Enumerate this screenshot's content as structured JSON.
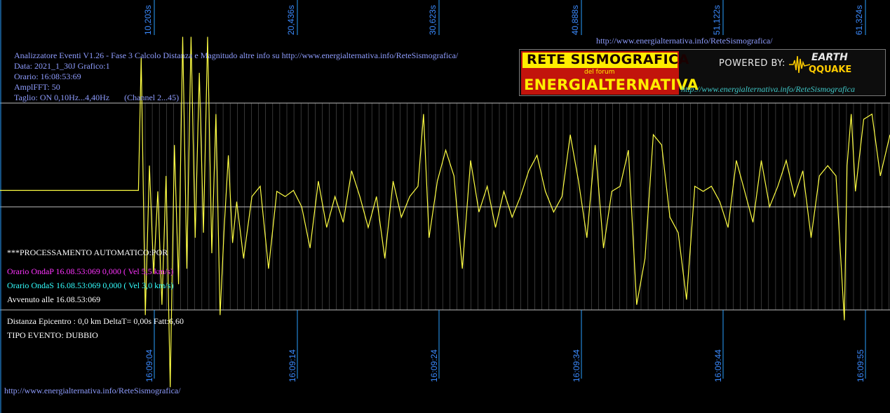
{
  "header": {
    "url_top": "http://www.energialternativa.info/ReteSismografica/",
    "url_bottom": "http://www.energialternativa.info/ReteSismografica/"
  },
  "info": {
    "line1": "Analizzatore Eventi V1.26 - Fase 3 Calcolo Distanza e Magnitudo altre info su http://www.energialternativa.info/ReteSismografica/",
    "line2": "Data: 2021_1_30J Grafico:1",
    "line3": "Orario: 16:08:53:69",
    "line4": "AmplFFT: 50",
    "line5": "Taglio: ON 0,10Hz...4,40Hz       (Channel 2...45)"
  },
  "analysis": {
    "proc": "***PROCESSAMENTO AUTOMATICO:POR",
    "onda_p": "Orario OndaP 16.08.53:069  0,000 ( Vel 5,5 km/s)",
    "onda_s": "Orario OndaS 16.08.53:069  0,000 ( Vel 3,0 km/s)",
    "avvenuto": "Avvenuto alle 16.08.53:069",
    "distanza": "Distanza Epicentro : 0,0 km DeltaT= 0,00s  Fatt:6,60",
    "tipo": "TIPO EVENTO: DUBBIO"
  },
  "logo": {
    "line1": "RETE SISMOGRAFICA",
    "line2": "del forum",
    "line3": "ENERGIALTERNATIVA",
    "powered": "POWERED BY:",
    "brand1": "EARTH",
    "brand2": "QQUAKE",
    "url": "http://www.energialternativa.info/ReteSismografica"
  },
  "colors": {
    "background": "#000000",
    "trace": "#ffff44",
    "grid": "#bbbbbb",
    "tick_label": "#3b8bff",
    "info_text": "#8f9dff"
  },
  "chart_data": {
    "type": "line",
    "x_top_ticks": [
      "10,203s",
      "20,436s",
      "30,623s",
      "40,888s",
      "51,122s",
      "61,324s"
    ],
    "x_bottom_ticks": [
      "16:09:04",
      "16:09:14",
      "16:09:24",
      "16:09:34",
      "16:09:44",
      "16:09:55"
    ],
    "series": [
      {
        "x": [
          0,
          2,
          4,
          6,
          8,
          10,
          10.2,
          10.5,
          10.8,
          11.1,
          11.4,
          11.7,
          12.0,
          12.3,
          12.6,
          12.9,
          13.2,
          13.5,
          13.8,
          14.1,
          14.4,
          14.7,
          15.0,
          15.3,
          15.6,
          15.9,
          16.2,
          16.5,
          16.8,
          17.1,
          17.6,
          18.2,
          18.8,
          19.4,
          20.0,
          20.6,
          21.2,
          21.8,
          22.4,
          23.0,
          23.6,
          24.2,
          24.8,
          25.4,
          26.0,
          26.6,
          27.2,
          27.8,
          28.4,
          29.0,
          29.6,
          30.2,
          30.6,
          31.0,
          31.6,
          32.2,
          32.8,
          33.4,
          34.0,
          34.6,
          35.2,
          35.8,
          36.4,
          37.0,
          37.6,
          38.2,
          38.8,
          39.4,
          40.0,
          40.6,
          41.2,
          41.8,
          42.4,
          43.0,
          43.6,
          44.2,
          44.8,
          45.4,
          46.0,
          46.6,
          47.2,
          47.8,
          48.4,
          49.0,
          49.6,
          50.2,
          50.8,
          51.4,
          52.0,
          52.6,
          53.2,
          53.8,
          54.4,
          55.0,
          55.6,
          56.2,
          56.8,
          57.4,
          58.0,
          58.6,
          59.2,
          59.8,
          60.4,
          61.0,
          61.2,
          61.5,
          61.8,
          62.4,
          63.0,
          63.6,
          64.3
        ],
        "y": [
          0.16,
          0.16,
          0.16,
          0.16,
          0.16,
          0.16,
          1.45,
          -1.05,
          0.4,
          -0.65,
          0.15,
          -0.95,
          0.3,
          -1.75,
          0.6,
          -0.75,
          1.65,
          -0.6,
          1.65,
          -0.3,
          1.3,
          -0.25,
          1.65,
          -0.45,
          0.9,
          -1.05,
          -0.2,
          0.5,
          -0.35,
          0.05,
          -0.5,
          0.1,
          0.2,
          -0.6,
          0.15,
          0.1,
          0.16,
          0.0,
          -0.4,
          0.25,
          -0.2,
          0.1,
          -0.15,
          0.35,
          0.1,
          -0.2,
          0.1,
          -0.5,
          0.25,
          -0.1,
          0.1,
          0.2,
          0.9,
          -0.3,
          0.25,
          0.55,
          0.3,
          -0.6,
          0.45,
          -0.05,
          0.2,
          -0.2,
          0.15,
          -0.1,
          0.1,
          0.35,
          0.5,
          0.15,
          -0.05,
          0.1,
          0.7,
          0.25,
          -0.3,
          0.6,
          -0.4,
          0.15,
          0.2,
          0.55,
          -0.95,
          -0.5,
          0.7,
          0.6,
          -0.1,
          -0.25,
          -0.9,
          0.2,
          0.15,
          0.2,
          0.05,
          -0.2,
          0.45,
          0.15,
          -0.15,
          0.45,
          0.0,
          0.2,
          0.45,
          0.1,
          0.35,
          -0.3,
          0.3,
          0.4,
          0.3,
          -1.1,
          0.4,
          0.9,
          0.15,
          0.85,
          0.9,
          0.3,
          0.7
        ]
      }
    ],
    "xlim": [
      0,
      64.3
    ],
    "ylim": [
      -1.95,
      1.65
    ],
    "grid": true
  }
}
